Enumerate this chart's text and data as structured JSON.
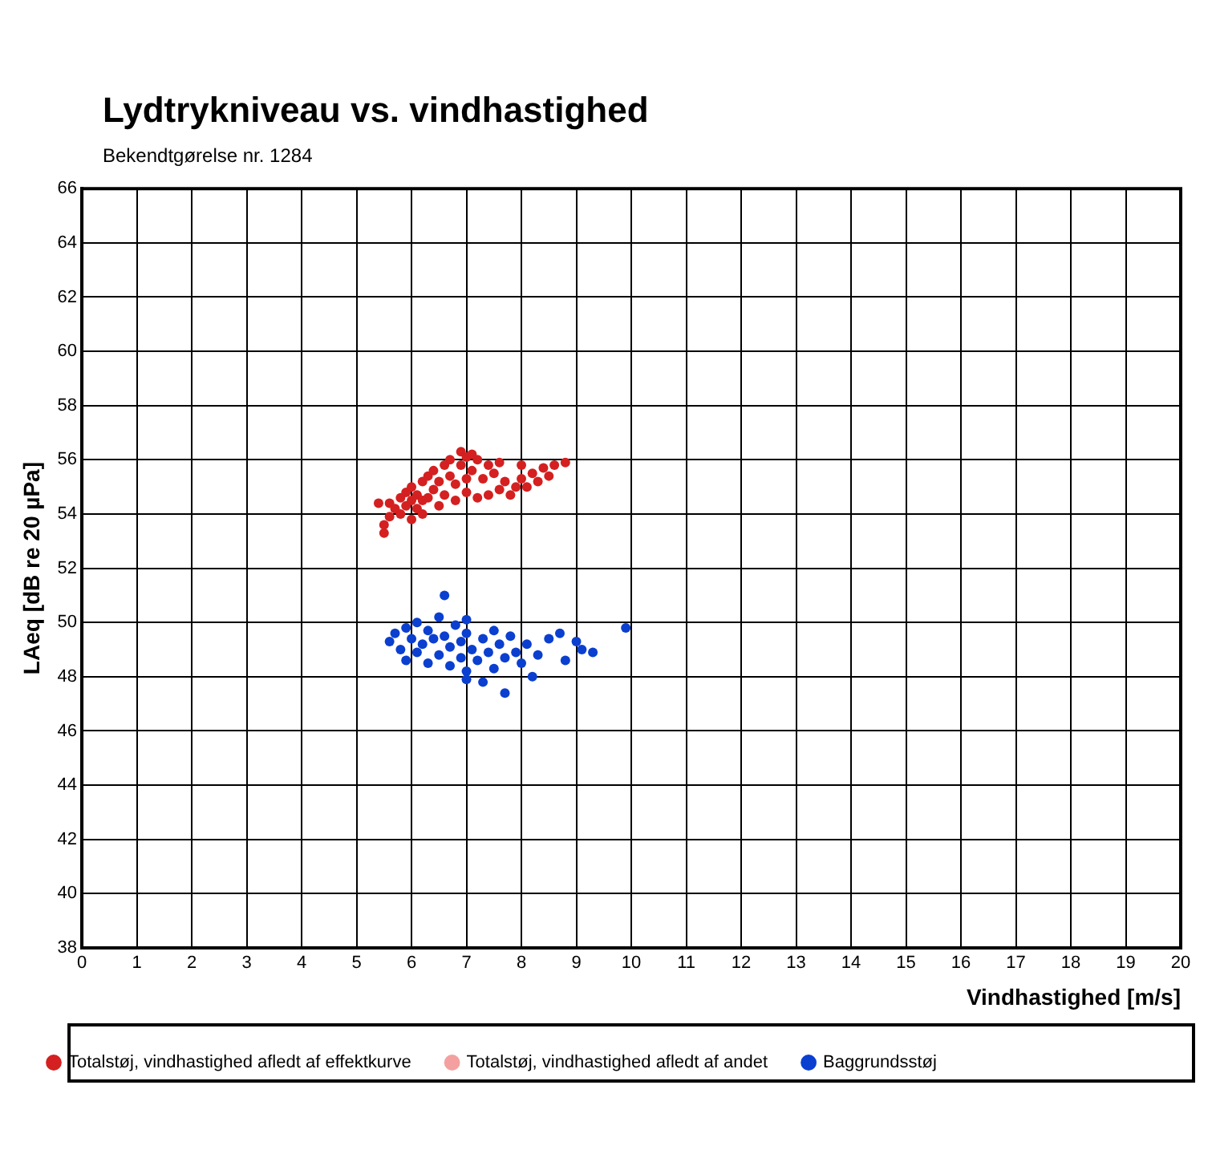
{
  "chart_data": {
    "type": "scatter",
    "title": "Lydtrykniveau vs. vindhastighed",
    "subtitle": "Bekendtgørelse nr. 1284",
    "xlabel": "Vindhastighed [m/s]",
    "ylabel": "LAeq [dB re 20 µPa]",
    "xlim": [
      0,
      20
    ],
    "xticks": [
      0,
      1,
      2,
      3,
      4,
      5,
      6,
      7,
      8,
      9,
      10,
      11,
      12,
      13,
      14,
      15,
      16,
      17,
      18,
      19,
      20
    ],
    "ylim": [
      38,
      66
    ],
    "yticks": [
      38,
      40,
      42,
      44,
      46,
      48,
      50,
      52,
      54,
      56,
      58,
      60,
      62,
      64,
      66
    ],
    "grid": true,
    "legend": "bottom",
    "marker": "circle",
    "series": [
      {
        "name": "Totalstøj, vindhastighed afledt af effektkurve",
        "color": "#d42020",
        "x": [
          5.4,
          5.5,
          5.5,
          5.6,
          5.6,
          5.7,
          5.8,
          5.8,
          5.9,
          5.9,
          6.0,
          6.0,
          6.1,
          6.1,
          6.2,
          6.2,
          6.3,
          6.3,
          6.4,
          6.4,
          6.5,
          6.5,
          6.6,
          6.6,
          6.7,
          6.7,
          6.8,
          6.8,
          6.9,
          6.9,
          7.0,
          7.0,
          7.0,
          7.1,
          7.2,
          7.2,
          7.3,
          7.4,
          7.4,
          7.5,
          7.6,
          7.7,
          7.8,
          7.9,
          8.0,
          8.1,
          8.2,
          8.3,
          8.4,
          8.5,
          8.6,
          8.8,
          6.0,
          6.2,
          7.1,
          7.6,
          8.0
        ],
        "values": [
          54.4,
          53.3,
          53.6,
          53.9,
          54.4,
          54.2,
          54.6,
          54.0,
          54.3,
          54.8,
          54.5,
          55.0,
          54.2,
          54.7,
          55.2,
          54.0,
          54.6,
          55.4,
          54.9,
          55.6,
          54.3,
          55.2,
          55.8,
          54.7,
          55.4,
          56.0,
          54.5,
          55.1,
          55.8,
          56.3,
          55.3,
          54.8,
          56.1,
          55.6,
          54.6,
          56.0,
          55.3,
          55.8,
          54.7,
          55.5,
          54.9,
          55.2,
          54.7,
          55.0,
          55.3,
          55.0,
          55.5,
          55.2,
          55.7,
          55.4,
          55.8,
          55.9,
          53.8,
          54.5,
          56.2,
          55.9,
          55.8
        ]
      },
      {
        "name": "Totalstøj, vindhastighed afledt af andet",
        "color": "#f4a0a0"
      },
      {
        "name": "Baggrundsstøj",
        "color": "#0a3fd0",
        "x": [
          5.6,
          5.7,
          5.8,
          5.9,
          5.9,
          6.0,
          6.1,
          6.1,
          6.2,
          6.3,
          6.3,
          6.4,
          6.5,
          6.5,
          6.6,
          6.6,
          6.7,
          6.7,
          6.8,
          6.9,
          6.9,
          7.0,
          7.0,
          7.0,
          7.1,
          7.2,
          7.3,
          7.3,
          7.4,
          7.5,
          7.5,
          7.6,
          7.7,
          7.7,
          7.8,
          7.9,
          8.0,
          8.1,
          8.2,
          8.3,
          8.5,
          8.7,
          8.8,
          9.0,
          9.1,
          9.3,
          9.9,
          7.0
        ],
        "values": [
          49.3,
          49.6,
          49.0,
          49.8,
          48.6,
          49.4,
          50.0,
          48.9,
          49.2,
          49.7,
          48.5,
          49.4,
          50.2,
          48.8,
          51.0,
          49.5,
          49.1,
          48.4,
          49.9,
          49.3,
          48.7,
          49.6,
          48.2,
          50.1,
          49.0,
          48.6,
          49.4,
          47.8,
          48.9,
          49.7,
          48.3,
          49.2,
          47.4,
          48.7,
          49.5,
          48.9,
          48.5,
          49.2,
          48.0,
          48.8,
          49.4,
          49.6,
          48.6,
          49.3,
          49.0,
          48.9,
          49.8,
          47.9
        ]
      }
    ]
  }
}
